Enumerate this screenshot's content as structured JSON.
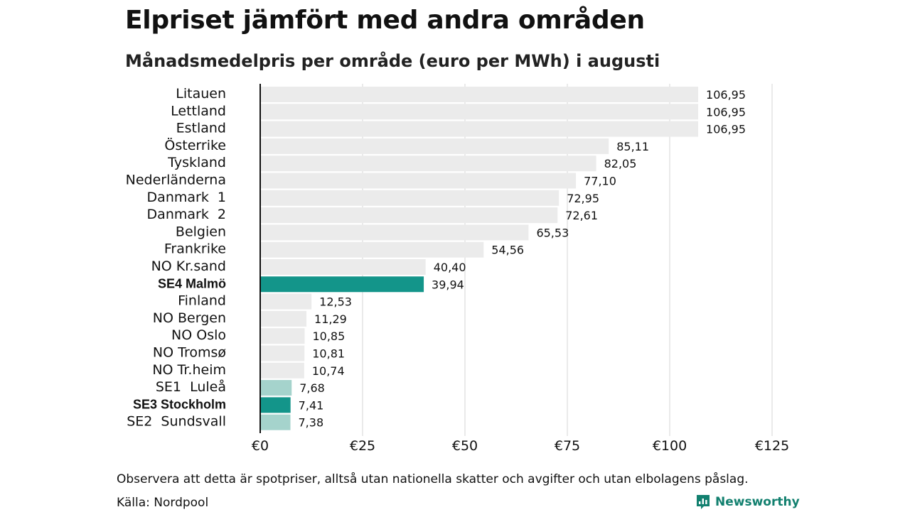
{
  "header": {
    "title": "Elpriset jämfört med andra områden",
    "subtitle": "Månadsmedelpris per område (euro per MWh) i augusti"
  },
  "footer": {
    "note": "Observera att detta är spotpriser, alltså utan nationella skatter och avgifter och utan elbolagens påslag.",
    "source": "Källa: Nordpool",
    "brand": "Newsworthy"
  },
  "colors": {
    "bar_default": "#ebebeb",
    "bar_highlight": "#13958a",
    "bar_swedish_other": "#a5d3cc",
    "grid": "#d4d4d4",
    "axis": "#111111",
    "brand": "#12806f"
  },
  "chart_data": {
    "type": "bar",
    "orientation": "horizontal",
    "x_axis": {
      "min": 0,
      "max": 125,
      "ticks": [
        0,
        25,
        50,
        75,
        100,
        125
      ],
      "tick_labels": [
        "€0",
        "€25",
        "€50",
        "€75",
        "€100",
        "€125"
      ]
    },
    "grid": true,
    "bars": [
      {
        "label": "Litauen",
        "value": 106.95,
        "value_label": "106,95",
        "style": "default"
      },
      {
        "label": "Lettland",
        "value": 106.95,
        "value_label": "106,95",
        "style": "default"
      },
      {
        "label": "Estland",
        "value": 106.95,
        "value_label": "106,95",
        "style": "default"
      },
      {
        "label": "Österrike",
        "value": 85.11,
        "value_label": "85,11",
        "style": "default"
      },
      {
        "label": "Tyskland",
        "value": 82.05,
        "value_label": "82,05",
        "style": "default"
      },
      {
        "label": "Nederländerna",
        "value": 77.1,
        "value_label": "77,10",
        "style": "default"
      },
      {
        "label": "Danmark  1",
        "value": 72.95,
        "value_label": "72,95",
        "style": "default"
      },
      {
        "label": "Danmark  2",
        "value": 72.61,
        "value_label": "72,61",
        "style": "default"
      },
      {
        "label": "Belgien",
        "value": 65.53,
        "value_label": "65,53",
        "style": "default"
      },
      {
        "label": "Frankrike",
        "value": 54.56,
        "value_label": "54,56",
        "style": "default"
      },
      {
        "label": "NO Kr.sand",
        "value": 40.4,
        "value_label": "40,40",
        "style": "default"
      },
      {
        "label": "SE4 Malmö",
        "value": 39.94,
        "value_label": "39,94",
        "style": "highlight"
      },
      {
        "label": "Finland",
        "value": 12.53,
        "value_label": "12,53",
        "style": "default"
      },
      {
        "label": "NO Bergen",
        "value": 11.29,
        "value_label": "11,29",
        "style": "default"
      },
      {
        "label": "NO Oslo",
        "value": 10.85,
        "value_label": "10,85",
        "style": "default"
      },
      {
        "label": "NO Tromsø",
        "value": 10.81,
        "value_label": "10,81",
        "style": "default"
      },
      {
        "label": "NO Tr.heim",
        "value": 10.74,
        "value_label": "10,74",
        "style": "default"
      },
      {
        "label": "SE1  Luleå",
        "value": 7.68,
        "value_label": "7,68",
        "style": "swedish_other"
      },
      {
        "label": "SE3 Stockholm",
        "value": 7.41,
        "value_label": "7,41",
        "style": "highlight"
      },
      {
        "label": "SE2  Sundsvall",
        "value": 7.38,
        "value_label": "7,38",
        "style": "swedish_other"
      }
    ]
  }
}
